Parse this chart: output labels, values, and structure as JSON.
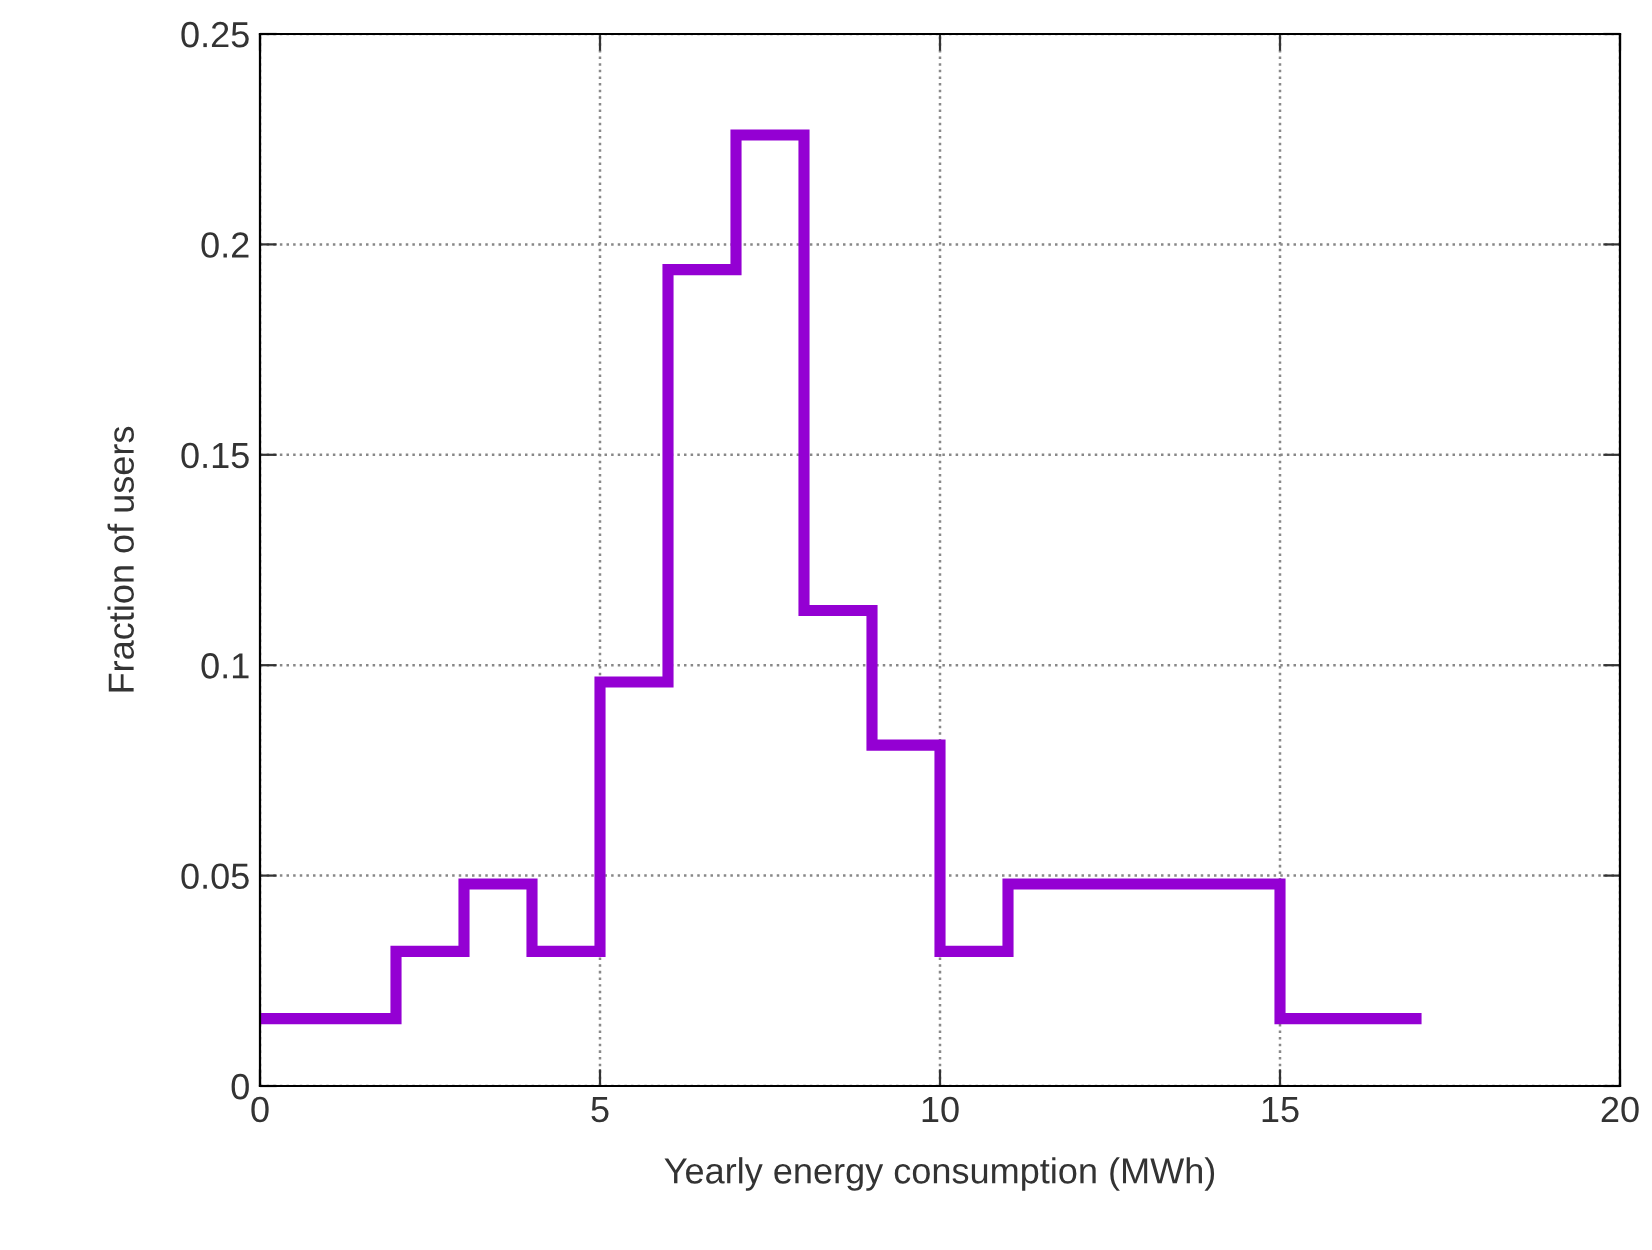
{
  "chart_data": {
    "type": "step",
    "xlabel": "Yearly energy consumption (MWh)",
    "ylabel": "Fraction of users",
    "x": [
      0,
      2,
      3,
      4,
      5,
      6,
      7,
      8,
      9,
      10,
      11,
      15,
      17
    ],
    "series": [
      {
        "color": "#9400d3",
        "values": [
          0.016,
          0.032,
          0.048,
          0.032,
          0.096,
          0.194,
          0.226,
          0.113,
          0.081,
          0.032,
          0.048,
          0.016,
          0.016
        ]
      }
    ],
    "xlim": [
      0,
      20
    ],
    "xticks": [
      0,
      5,
      10,
      15,
      20
    ],
    "ylim": [
      0,
      0.25
    ],
    "yticks": [
      0,
      0.05,
      0.1,
      0.15,
      0.2,
      0.25
    ],
    "grid": true,
    "line_style": "solid"
  }
}
